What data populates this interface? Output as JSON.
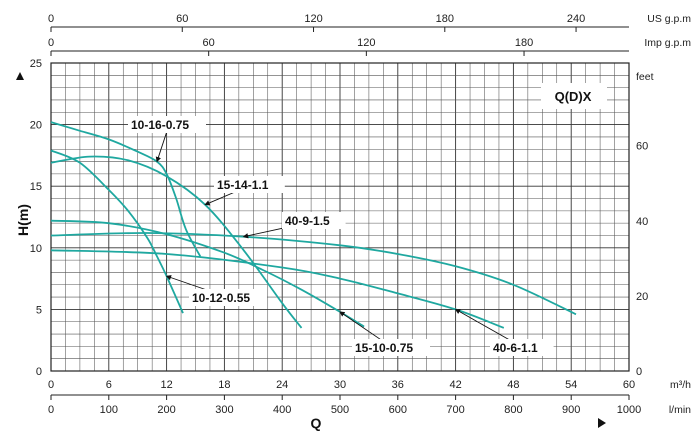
{
  "chart_data": {
    "type": "line",
    "title": "Q(D)X",
    "xlabel": "Q",
    "ylabel": "H(m)",
    "xlim": [
      0,
      60
    ],
    "ylim": [
      0,
      25
    ],
    "grid": true,
    "legend": "none",
    "line_color": "#1fa8a0",
    "x_unit": "m³/h",
    "bottom_axes": [
      {
        "unit": "m³/h",
        "ticks": [
          "0",
          "6",
          "12",
          "18",
          "24",
          "30",
          "36",
          "42",
          "48",
          "54",
          "60"
        ]
      },
      {
        "unit": "l/min",
        "ticks": [
          "0",
          "100",
          "200",
          "300",
          "400",
          "500",
          "600",
          "700",
          "800",
          "900",
          "1000"
        ]
      }
    ],
    "top_axes": [
      {
        "unit": "US g.p.m",
        "ticks": [
          "0",
          "60",
          "120",
          "180",
          "240"
        ]
      },
      {
        "unit": "Imp g.p.m",
        "ticks": [
          "0",
          "60",
          "120",
          "180"
        ]
      }
    ],
    "left_ticks": [
      "0",
      "5",
      "10",
      "15",
      "20",
      "25"
    ],
    "right_axis": {
      "unit": "feet",
      "ticks": [
        "0",
        "20",
        "40",
        "60"
      ]
    },
    "series": [
      {
        "name": "10-16-0.75",
        "x": [
          0,
          3,
          6,
          9,
          11,
          12,
          13,
          14,
          15.5
        ],
        "y": [
          20.2,
          19.5,
          18.8,
          17.8,
          17.0,
          16.0,
          14.0,
          11.5,
          9.3
        ]
      },
      {
        "name": "10-12-0.55",
        "x": [
          0,
          3,
          6,
          8,
          10,
          11,
          12,
          13.7
        ],
        "y": [
          17.9,
          16.9,
          14.7,
          13.0,
          10.8,
          9.3,
          7.7,
          4.7
        ]
      },
      {
        "name": "15-14-1.1",
        "x": [
          0,
          4,
          8,
          12,
          16,
          20,
          24,
          26
        ],
        "y": [
          16.9,
          17.4,
          17.1,
          15.8,
          13.5,
          9.8,
          5.5,
          3.5
        ]
      },
      {
        "name": "40-9-1.5",
        "x": [
          0,
          10,
          20,
          30,
          36,
          42,
          48,
          54.5
        ],
        "y": [
          11.0,
          11.2,
          10.9,
          10.2,
          9.5,
          8.5,
          7.0,
          4.6
        ]
      },
      {
        "name": "15-10-0.75",
        "x": [
          0,
          6,
          12,
          18,
          22,
          26,
          30,
          32.5
        ],
        "y": [
          12.2,
          12.0,
          11.1,
          9.6,
          8.2,
          6.6,
          4.8,
          3.6
        ]
      },
      {
        "name": "40-6-1.1",
        "x": [
          0,
          12,
          24,
          30,
          36,
          42,
          47
        ],
        "y": [
          9.8,
          9.5,
          8.4,
          7.5,
          6.3,
          5.0,
          3.5
        ]
      }
    ],
    "labels": [
      {
        "text": "10-16-0.75",
        "series": "10-16-0.75"
      },
      {
        "text": "15-14-1.1",
        "series": "15-14-1.1"
      },
      {
        "text": "40-9-1.5",
        "series": "40-9-1.5"
      },
      {
        "text": "10-12-0.55",
        "series": "10-12-0.55"
      },
      {
        "text": "15-10-0.75",
        "series": "15-10-0.75"
      },
      {
        "text": "40-6-1.1",
        "series": "40-6-1.1"
      }
    ]
  }
}
